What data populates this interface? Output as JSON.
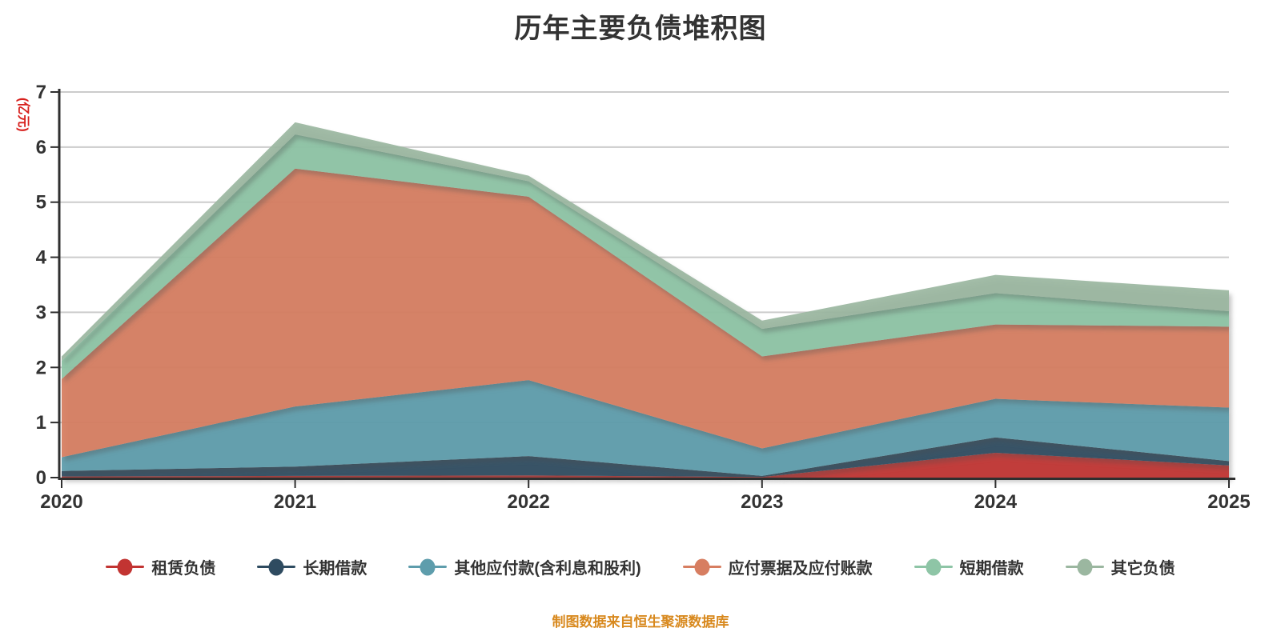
{
  "title": "历年主要负债堆积图",
  "y_axis": {
    "name": "(亿元)",
    "name_color": "#d7201d",
    "ticks": [
      "0",
      "1",
      "2",
      "3",
      "4",
      "5",
      "6",
      "7"
    ],
    "max": 7
  },
  "x_axis": {
    "years": [
      "2020",
      "2021",
      "2022",
      "2023",
      "2024",
      "2025"
    ]
  },
  "chart_data": {
    "type": "area",
    "stacked": true,
    "title": "历年主要负债堆积图",
    "unit": "亿元",
    "x": [
      "2020",
      "2021",
      "2022",
      "2023",
      "2024",
      "2025"
    ],
    "ylim": [
      0,
      7
    ],
    "grid": true,
    "legend_position": "bottom",
    "series": [
      {
        "name": "租赁负债",
        "color": "#c23432",
        "values": [
          0.02,
          0.03,
          0.04,
          0.01,
          0.45,
          0.22
        ]
      },
      {
        "name": "长期借款",
        "color": "#2e4b60",
        "values": [
          0.1,
          0.17,
          0.35,
          0.02,
          0.28,
          0.08
        ]
      },
      {
        "name": "其他应付款(含利息和股利)",
        "color": "#5e9dac",
        "values": [
          0.25,
          1.09,
          1.38,
          0.5,
          0.7,
          0.97
        ]
      },
      {
        "name": "应付票据及应付账款",
        "color": "#d77e61",
        "values": [
          1.42,
          4.32,
          3.33,
          1.67,
          1.35,
          1.47
        ]
      },
      {
        "name": "短期借款",
        "color": "#8ec5a6",
        "values": [
          0.33,
          0.62,
          0.28,
          0.5,
          0.57,
          0.28
        ]
      },
      {
        "name": "其它负债",
        "color": "#9bb7a0",
        "values": [
          0.08,
          0.22,
          0.1,
          0.15,
          0.33,
          0.38
        ]
      }
    ]
  },
  "footer": {
    "source_note": "制图数据来自恒生聚源数据库",
    "color": "#d8891e"
  },
  "colors": {
    "background": "#ffffff",
    "gridline": "#cccccc",
    "axis": "#2f2f2f",
    "text": "#333333"
  }
}
